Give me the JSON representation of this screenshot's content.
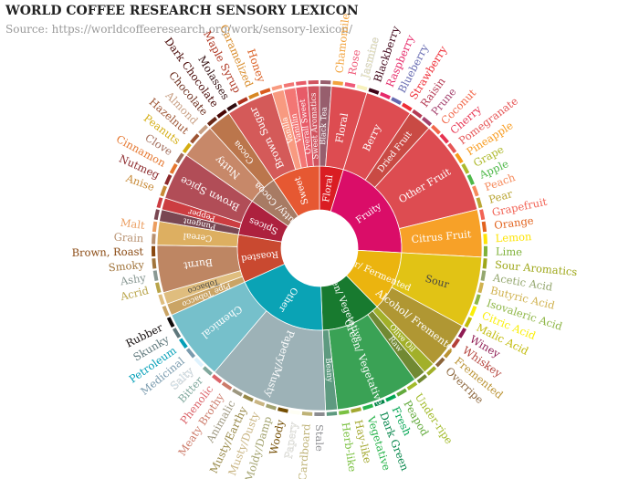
{
  "chart_data": {
    "type": "sunburst",
    "title": "WORLD COFFEE RESEARCH SENSORY LEXICON",
    "source": "Source: https://worldcoffeeresearch.org/work/sensory-lexicon/",
    "categories": [
      {
        "name": "Floral",
        "color": "#da1d23",
        "children": [
          {
            "name": "Black Tea",
            "color": "#975e6d",
            "value": 1
          },
          {
            "name": "Floral",
            "color": "#dd4c51",
            "children": [
              {
                "name": "Chamomile",
                "color": "#f2a33e",
                "value": 1
              },
              {
                "name": "Rose",
                "color": "#ef5a78",
                "value": 1
              },
              {
                "name": "Jasmine",
                "color": "#f7f1bd",
                "value": 1
              }
            ]
          }
        ]
      },
      {
        "name": "Fruity",
        "color": "#da0d68",
        "children": [
          {
            "name": "Berry",
            "color": "#dd4c51",
            "children": [
              {
                "name": "Blackberry",
                "color": "#3e0317",
                "value": 1
              },
              {
                "name": "Raspberry",
                "color": "#e62969",
                "value": 1
              },
              {
                "name": "Blueberry",
                "color": "#6569b0",
                "value": 1
              },
              {
                "name": "Strawberry",
                "color": "#ef2d36",
                "value": 1
              }
            ]
          },
          {
            "name": "Dried Fruit",
            "color": "#c94a44",
            "children": [
              {
                "name": "Raisin",
                "color": "#b53b54",
                "value": 1
              },
              {
                "name": "Prune",
                "color": "#a5446f",
                "value": 1
              }
            ]
          },
          {
            "name": "Other Fruit",
            "color": "#dd4c51",
            "children": [
              {
                "name": "Coconut",
                "color": "#f2684b",
                "value": 1
              },
              {
                "name": "Cherry",
                "color": "#e73451",
                "value": 1
              },
              {
                "name": "Pomegranate",
                "color": "#e65656",
                "value": 1
              },
              {
                "name": "Pineapple",
                "color": "#f89a1c",
                "value": 1
              },
              {
                "name": "Grape",
                "color": "#aeb92c",
                "value": 1
              },
              {
                "name": "Apple",
                "color": "#4eb849",
                "value": 1
              },
              {
                "name": "Peach",
                "color": "#f68a5c",
                "value": 1
              },
              {
                "name": "Pear",
                "color": "#baa635",
                "value": 1
              }
            ]
          },
          {
            "name": "Citrus Fruit",
            "color": "#f7a128",
            "children": [
              {
                "name": "Grapefruit",
                "color": "#f26355",
                "value": 1
              },
              {
                "name": "Orange",
                "color": "#e2631e",
                "value": 1
              },
              {
                "name": "Lemon",
                "color": "#fde404",
                "value": 1
              },
              {
                "name": "Lime",
                "color": "#7eb138",
                "value": 1
              }
            ]
          }
        ]
      },
      {
        "name": "Sour/ Fermented",
        "color": "#ebb40f",
        "children": [
          {
            "name": "Sour",
            "color": "#e1c315",
            "children": [
              {
                "name": "Sour Aromatics",
                "color": "#9ea718",
                "value": 1
              },
              {
                "name": "Acetic Acid",
                "color": "#94a76f",
                "value": 1
              },
              {
                "name": "Butyric Acid",
                "color": "#d0b24f",
                "value": 1
              },
              {
                "name": "Isovaleric Acid",
                "color": "#8eb646",
                "value": 1
              },
              {
                "name": "Citric Acid",
                "color": "#faef07",
                "value": 1
              },
              {
                "name": "Malic Acid",
                "color": "#c1ba07",
                "value": 1
              }
            ]
          },
          {
            "name": "Alcohol/ Fremented",
            "color": "#b09733",
            "children": [
              {
                "name": "Winey",
                "color": "#8f1c53",
                "value": 1
              },
              {
                "name": "Whiskey",
                "color": "#b34039",
                "value": 1
              },
              {
                "name": "Fremented",
                "color": "#ba9232",
                "value": 1
              },
              {
                "name": "Overripe",
                "color": "#8b6439",
                "value": 1
              }
            ]
          }
        ]
      },
      {
        "name": "Green/ Vegetative",
        "color": "#187a2f",
        "children": [
          {
            "name": "Olive Oil",
            "color": "#a2b029",
            "value": 1
          },
          {
            "name": "Raw",
            "color": "#718933",
            "value": 1
          },
          {
            "name": "Green/ Vegetative",
            "color": "#3aa255",
            "children": [
              {
                "name": "Under-ripe",
                "color": "#a2bb2b",
                "value": 1
              },
              {
                "name": "Peapod",
                "color": "#62aa3c",
                "value": 1
              },
              {
                "name": "Fresh",
                "color": "#03a653",
                "value": 1
              },
              {
                "name": "Dark Green",
                "color": "#038549",
                "value": 1
              },
              {
                "name": "Vegetative",
                "color": "#28b44b",
                "value": 1
              },
              {
                "name": "Hay-like",
                "color": "#a3a830",
                "value": 1
              },
              {
                "name": "Herb-like",
                "color": "#7ac141",
                "value": 1
              }
            ]
          },
          {
            "name": "Beany",
            "color": "#5e9a80",
            "value": 1
          }
        ]
      },
      {
        "name": "Other",
        "color": "#0aa3b5",
        "children": [
          {
            "name": "Papery/Musty",
            "color": "#9db2b7",
            "children": [
              {
                "name": "Stale",
                "color": "#8b8c90",
                "value": 1
              },
              {
                "name": "Cardboard",
                "color": "#beb276",
                "value": 1
              },
              {
                "name": "Papery",
                "color": "#fefef4",
                "value": 1
              },
              {
                "name": "Woody",
                "color": "#744e03",
                "value": 1
              },
              {
                "name": "Moldy/Damp",
                "color": "#a3a36f",
                "value": 1
              },
              {
                "name": "Musty/Dusty",
                "color": "#c9b583",
                "value": 1
              },
              {
                "name": "Musty/Earthy",
                "color": "#978847",
                "value": 1
              },
              {
                "name": "Animalic",
                "color": "#9d977f",
                "value": 1
              },
              {
                "name": "Meaty Brothy",
                "color": "#cc7b6a",
                "value": 1
              },
              {
                "name": "Phenolic",
                "color": "#db646a",
                "value": 1
              }
            ]
          },
          {
            "name": "Chemical",
            "color": "#76c0cb",
            "children": [
              {
                "name": "Bitter",
                "color": "#80a89d",
                "value": 1
              },
              {
                "name": "Salty",
                "color": "#def2fd",
                "value": 1
              },
              {
                "name": "Medicinal",
                "color": "#7a9bae",
                "value": 1
              },
              {
                "name": "Petroleum",
                "color": "#039fb8",
                "value": 1
              },
              {
                "name": "Skunky",
                "color": "#5e777b",
                "value": 1
              },
              {
                "name": "Rubber",
                "color": "#120c0c",
                "value": 1
              }
            ]
          }
        ]
      },
      {
        "name": "Roasted",
        "color": "#c94930",
        "children": [
          {
            "name": "Pipe Tobacco",
            "color": "#caa465",
            "value": 1
          },
          {
            "name": "Tobacco",
            "color": "#dfbd7e",
            "value": 1
          },
          {
            "name": "Burnt",
            "color": "#be8663",
            "children": [
              {
                "name": "Acrid",
                "color": "#b9a449",
                "value": 1
              },
              {
                "name": "Ashy",
                "color": "#899893",
                "value": 1
              },
              {
                "name": "Smoky",
                "color": "#a1743b",
                "value": 1
              },
              {
                "name": "Brown, Roast",
                "color": "#894810",
                "value": 1
              }
            ]
          },
          {
            "name": "Cereal",
            "color": "#ddaf61",
            "children": [
              {
                "name": "Grain",
                "color": "#b7906f",
                "value": 1
              },
              {
                "name": "Malt",
                "color": "#eb9d5f",
                "value": 1
              }
            ]
          }
        ]
      },
      {
        "name": "Spices",
        "color": "#ad213e",
        "children": [
          {
            "name": "Pungent",
            "color": "#794752",
            "value": 1
          },
          {
            "name": "Pepper",
            "color": "#cc3d41",
            "value": 1
          },
          {
            "name": "Brown Spice",
            "color": "#b14d57",
            "children": [
              {
                "name": "Anise",
                "color": "#c78936",
                "value": 1
              },
              {
                "name": "Nutmeg",
                "color": "#8c292c",
                "value": 1
              },
              {
                "name": "Cinnamon",
                "color": "#e5762e",
                "value": 1
              },
              {
                "name": "Clove",
                "color": "#a16c5a",
                "value": 1
              }
            ]
          }
        ]
      },
      {
        "name": "Nutty/ Cocoa",
        "color": "#a87b64",
        "children": [
          {
            "name": "Nutty",
            "color": "#c78869",
            "children": [
              {
                "name": "Peanuts",
                "color": "#d4ad12",
                "value": 1
              },
              {
                "name": "Hazelnut",
                "color": "#9d5433",
                "value": 1
              },
              {
                "name": "Almond",
                "color": "#c89f83",
                "value": 1
              }
            ]
          },
          {
            "name": "Cocoa",
            "color": "#bb764c",
            "children": [
              {
                "name": "Chocolate",
                "color": "#692a19",
                "value": 1
              },
              {
                "name": "Dark Chocolate",
                "color": "#470604",
                "value": 1
              }
            ]
          }
        ]
      },
      {
        "name": "Sweet",
        "color": "#e65832",
        "children": [
          {
            "name": "Brown Sugar",
            "color": "#d45a59",
            "children": [
              {
                "name": "Molasses",
                "color": "#310d0f",
                "value": 1
              },
              {
                "name": "Maple Syrup",
                "color": "#ae341f",
                "value": 1
              },
              {
                "name": "Caramelized",
                "color": "#d78823",
                "value": 1
              },
              {
                "name": "Honey",
                "color": "#da5c1f",
                "value": 1
              }
            ]
          },
          {
            "name": "Vanilla",
            "color": "#f89a80",
            "value": 1
          },
          {
            "name": "Vanillin",
            "color": "#f37674",
            "value": 1
          },
          {
            "name": "Overall Sweet",
            "color": "#e75b68",
            "value": 1
          },
          {
            "name": "Sweet Aromatics",
            "color": "#d0545f",
            "value": 1
          }
        ]
      }
    ]
  }
}
